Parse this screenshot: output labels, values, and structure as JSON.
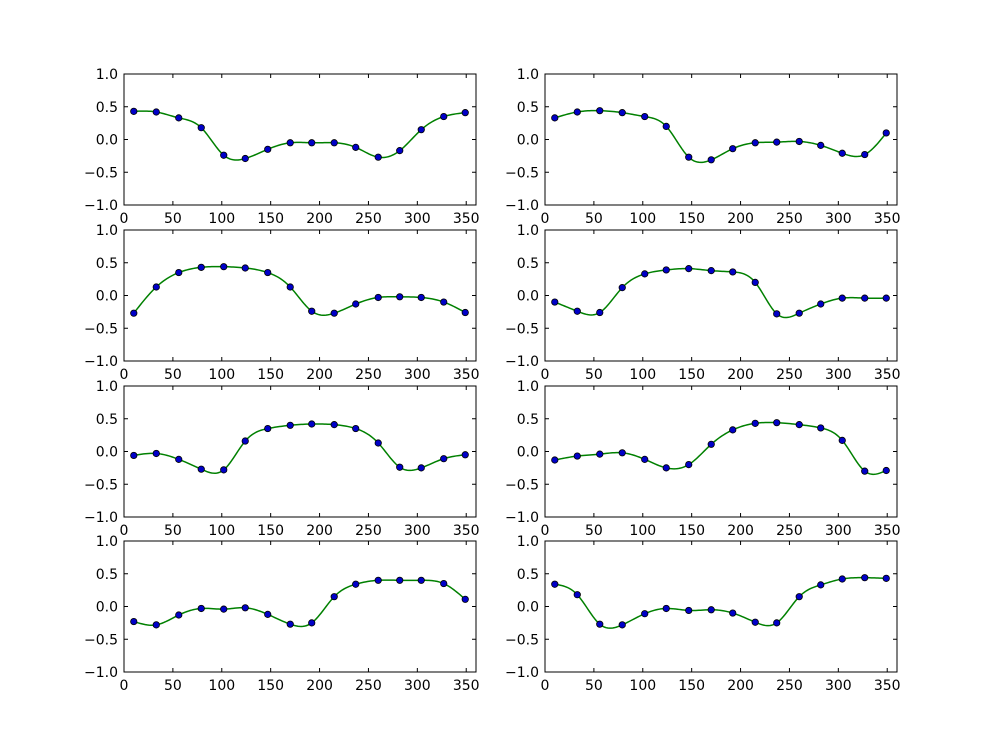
{
  "chart_data": [
    {
      "type": "scatter",
      "xlim": [
        0,
        360
      ],
      "ylim": [
        -1.0,
        1.0
      ],
      "xticks": [
        "0",
        "50",
        "100",
        "150",
        "200",
        "250",
        "300",
        "350"
      ],
      "yticks": [
        "1.0",
        "0.5",
        "0.0",
        "−0.5",
        "−1.0"
      ],
      "x": [
        10,
        33,
        56,
        79,
        102,
        124,
        147,
        170,
        192,
        215,
        237,
        260,
        282,
        304,
        327,
        349
      ],
      "series": [
        {
          "kind": "points",
          "values": [
            0.43,
            0.42,
            0.33,
            0.18,
            -0.24,
            -0.29,
            -0.15,
            -0.05,
            -0.05,
            -0.05,
            -0.12,
            -0.27,
            -0.17,
            0.15,
            0.35,
            0.41
          ]
        },
        {
          "kind": "curve",
          "values": [
            0.43,
            0.42,
            0.33,
            0.18,
            -0.24,
            -0.29,
            -0.15,
            -0.05,
            -0.05,
            -0.05,
            -0.12,
            -0.27,
            -0.17,
            0.15,
            0.35,
            0.41
          ]
        }
      ]
    },
    {
      "type": "scatter",
      "xlim": [
        0,
        360
      ],
      "ylim": [
        -1.0,
        1.0
      ],
      "xticks": [
        "0",
        "50",
        "100",
        "150",
        "200",
        "250",
        "300",
        "350"
      ],
      "yticks": [
        "1.0",
        "0.5",
        "0.0",
        "−0.5",
        "−1.0"
      ],
      "x": [
        10,
        33,
        56,
        79,
        102,
        124,
        147,
        170,
        192,
        215,
        237,
        260,
        282,
        304,
        327,
        349
      ],
      "series": [
        {
          "kind": "points",
          "values": [
            0.33,
            0.42,
            0.44,
            0.41,
            0.35,
            0.2,
            -0.27,
            -0.31,
            -0.14,
            -0.05,
            -0.04,
            -0.03,
            -0.09,
            -0.21,
            -0.23,
            0.1
          ]
        },
        {
          "kind": "curve",
          "values": [
            0.33,
            0.42,
            0.44,
            0.41,
            0.35,
            0.2,
            -0.27,
            -0.31,
            -0.14,
            -0.05,
            -0.04,
            -0.03,
            -0.09,
            -0.21,
            -0.23,
            0.1
          ]
        }
      ]
    },
    {
      "type": "scatter",
      "xlim": [
        0,
        360
      ],
      "ylim": [
        -1.0,
        1.0
      ],
      "xticks": [
        "0",
        "50",
        "100",
        "150",
        "200",
        "250",
        "300",
        "350"
      ],
      "yticks": [
        "1.0",
        "0.5",
        "0.0",
        "−0.5",
        "−1.0"
      ],
      "x": [
        10,
        33,
        56,
        79,
        102,
        124,
        147,
        170,
        192,
        215,
        237,
        260,
        282,
        304,
        327,
        349
      ],
      "series": [
        {
          "kind": "points",
          "values": [
            -0.27,
            0.13,
            0.35,
            0.43,
            0.44,
            0.42,
            0.35,
            0.13,
            -0.24,
            -0.27,
            -0.13,
            -0.03,
            -0.02,
            -0.03,
            -0.1,
            -0.26
          ]
        },
        {
          "kind": "curve",
          "values": [
            -0.27,
            0.13,
            0.35,
            0.43,
            0.44,
            0.42,
            0.35,
            0.13,
            -0.24,
            -0.27,
            -0.13,
            -0.03,
            -0.02,
            -0.03,
            -0.1,
            -0.26
          ]
        }
      ]
    },
    {
      "type": "scatter",
      "xlim": [
        0,
        360
      ],
      "ylim": [
        -1.0,
        1.0
      ],
      "xticks": [
        "0",
        "50",
        "100",
        "150",
        "200",
        "250",
        "300",
        "350"
      ],
      "yticks": [
        "1.0",
        "0.5",
        "0.0",
        "−0.5",
        "−1.0"
      ],
      "x": [
        10,
        33,
        56,
        79,
        102,
        124,
        147,
        170,
        192,
        215,
        237,
        260,
        282,
        304,
        327,
        349
      ],
      "series": [
        {
          "kind": "points",
          "values": [
            -0.1,
            -0.24,
            -0.26,
            0.12,
            0.33,
            0.39,
            0.41,
            0.38,
            0.36,
            0.2,
            -0.28,
            -0.27,
            -0.13,
            -0.04,
            -0.04,
            -0.04
          ]
        },
        {
          "kind": "curve",
          "values": [
            -0.1,
            -0.24,
            -0.26,
            0.12,
            0.33,
            0.39,
            0.41,
            0.38,
            0.36,
            0.2,
            -0.28,
            -0.27,
            -0.13,
            -0.04,
            -0.04,
            -0.04
          ]
        }
      ]
    },
    {
      "type": "scatter",
      "xlim": [
        0,
        360
      ],
      "ylim": [
        -1.0,
        1.0
      ],
      "xticks": [
        "0",
        "50",
        "100",
        "150",
        "200",
        "250",
        "300",
        "350"
      ],
      "yticks": [
        "1.0",
        "0.5",
        "0.0",
        "−0.5",
        "−1.0"
      ],
      "x": [
        10,
        33,
        56,
        79,
        102,
        124,
        147,
        170,
        192,
        215,
        237,
        260,
        282,
        304,
        327,
        349
      ],
      "series": [
        {
          "kind": "points",
          "values": [
            -0.06,
            -0.03,
            -0.12,
            -0.27,
            -0.28,
            0.16,
            0.35,
            0.4,
            0.42,
            0.41,
            0.35,
            0.13,
            -0.24,
            -0.25,
            -0.11,
            -0.05
          ]
        },
        {
          "kind": "curve",
          "values": [
            -0.06,
            -0.03,
            -0.12,
            -0.27,
            -0.28,
            0.16,
            0.35,
            0.4,
            0.42,
            0.41,
            0.35,
            0.13,
            -0.24,
            -0.25,
            -0.11,
            -0.05
          ]
        }
      ]
    },
    {
      "type": "scatter",
      "xlim": [
        0,
        360
      ],
      "ylim": [
        -1.0,
        1.0
      ],
      "xticks": [
        "0",
        "50",
        "100",
        "150",
        "200",
        "250",
        "300",
        "350"
      ],
      "yticks": [
        "1.0",
        "0.5",
        "0.0",
        "−0.5",
        "−1.0"
      ],
      "x": [
        10,
        33,
        56,
        79,
        102,
        124,
        147,
        170,
        192,
        215,
        237,
        260,
        282,
        304,
        327,
        349
      ],
      "series": [
        {
          "kind": "points",
          "values": [
            -0.13,
            -0.07,
            -0.04,
            -0.02,
            -0.12,
            -0.25,
            -0.2,
            0.11,
            0.33,
            0.43,
            0.44,
            0.41,
            0.36,
            0.17,
            -0.3,
            -0.29
          ]
        },
        {
          "kind": "curve",
          "values": [
            -0.13,
            -0.07,
            -0.04,
            -0.02,
            -0.12,
            -0.25,
            -0.2,
            0.11,
            0.33,
            0.43,
            0.44,
            0.41,
            0.36,
            0.17,
            -0.3,
            -0.29
          ]
        }
      ]
    },
    {
      "type": "scatter",
      "xlim": [
        0,
        360
      ],
      "ylim": [
        -1.0,
        1.0
      ],
      "xticks": [
        "0",
        "50",
        "100",
        "150",
        "200",
        "250",
        "300",
        "350"
      ],
      "yticks": [
        "1.0",
        "0.5",
        "0.0",
        "−0.5",
        "−1.0"
      ],
      "x": [
        10,
        33,
        56,
        79,
        102,
        124,
        147,
        170,
        192,
        215,
        237,
        260,
        282,
        304,
        327,
        349
      ],
      "series": [
        {
          "kind": "points",
          "values": [
            -0.23,
            -0.28,
            -0.13,
            -0.03,
            -0.04,
            -0.02,
            -0.12,
            -0.27,
            -0.25,
            0.15,
            0.34,
            0.4,
            0.4,
            0.4,
            0.35,
            0.11
          ]
        },
        {
          "kind": "curve",
          "values": [
            -0.23,
            -0.28,
            -0.13,
            -0.03,
            -0.04,
            -0.02,
            -0.12,
            -0.27,
            -0.25,
            0.15,
            0.34,
            0.4,
            0.4,
            0.4,
            0.35,
            0.11
          ]
        }
      ]
    },
    {
      "type": "scatter",
      "xlim": [
        0,
        360
      ],
      "ylim": [
        -1.0,
        1.0
      ],
      "xticks": [
        "0",
        "50",
        "100",
        "150",
        "200",
        "250",
        "300",
        "350"
      ],
      "yticks": [
        "1.0",
        "0.5",
        "0.0",
        "−0.5",
        "−1.0"
      ],
      "x": [
        10,
        33,
        56,
        79,
        102,
        124,
        147,
        170,
        192,
        215,
        237,
        260,
        282,
        304,
        327,
        349
      ],
      "series": [
        {
          "kind": "points",
          "values": [
            0.34,
            0.18,
            -0.27,
            -0.28,
            -0.11,
            -0.03,
            -0.06,
            -0.05,
            -0.1,
            -0.24,
            -0.25,
            0.15,
            0.33,
            0.42,
            0.44,
            0.43
          ]
        },
        {
          "kind": "curve",
          "values": [
            0.34,
            0.18,
            -0.27,
            -0.28,
            -0.11,
            -0.03,
            -0.06,
            -0.05,
            -0.1,
            -0.24,
            -0.25,
            0.15,
            0.33,
            0.42,
            0.44,
            0.43
          ]
        }
      ]
    }
  ],
  "colors": {
    "point_fill": "#0000c8",
    "point_edge": "#000000",
    "curve": "#008000",
    "axes": "#000000",
    "background": "#ffffff"
  }
}
